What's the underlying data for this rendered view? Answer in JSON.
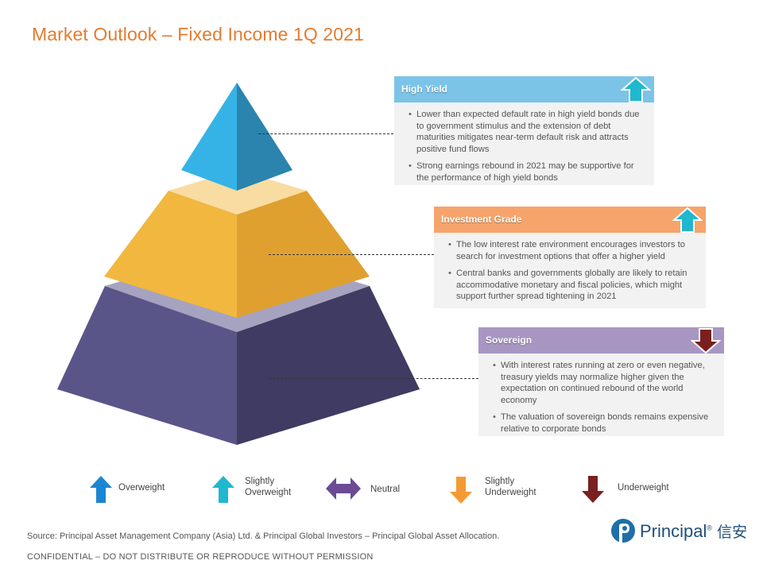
{
  "title": "Market Outlook – Fixed Income 1Q 2021",
  "panels": [
    {
      "heading": "High Yield",
      "signal": "slightly-overweight",
      "head_color": "#7bc4e8",
      "bullets": [
        "Lower than expected default rate in high yield bonds due to government stimulus and the extension of debt maturities mitigates near-term default risk and attracts positive fund flows",
        "Strong earnings rebound in 2021 may be supportive for the performance of high yield bonds"
      ]
    },
    {
      "heading": "Investment Grade",
      "signal": "slightly-overweight",
      "head_color": "#f6a46b",
      "bullets": [
        "The low interest rate environment encourages investors to search for investment options that offer a higher yield",
        "Central banks and governments globally are likely to retain accommodative monetary and fiscal policies, which might support further spread tightening in 2021"
      ]
    },
    {
      "heading": "Sovereign",
      "signal": "underweight",
      "head_color": "#a896c2",
      "bullets": [
        "With interest rates running at zero or even negative, treasury yields may normalize higher given the expectation on continued rebound of the world economy",
        "The valuation of sovereign bonds remains expensive relative to corporate bonds"
      ]
    }
  ],
  "legend": [
    {
      "label": "Overweight",
      "icon": "arrow-up-icon",
      "color": "#1b86d1"
    },
    {
      "label": "Slightly\nOverweight",
      "icon": "arrow-up-icon",
      "color": "#1fb8cf"
    },
    {
      "label": "Neutral",
      "icon": "arrow-left-right-icon",
      "color": "#6a4b94"
    },
    {
      "label": "Slightly\nUnderweight",
      "icon": "arrow-down-icon",
      "color": "#f59a33"
    },
    {
      "label": "Underweight",
      "icon": "arrow-down-icon",
      "color": "#7a1f1f"
    }
  ],
  "footer": {
    "source": "Source: Principal Asset Management Company (Asia) Ltd. & Principal Global Investors – Principal Global Asset Allocation.",
    "confidential": "CONFIDENTIAL – DO NOT DISTRIBUTE OR REPRODUCE WITHOUT PERMISSION"
  },
  "logo": {
    "name": "Principal",
    "chinese": "信安",
    "color": "#1f4f7a"
  },
  "colors": {
    "title": "#e57b2e",
    "pyramid_top": "#2fa6d8",
    "pyramid_mid": "#f0b43c",
    "pyramid_base": "#4b4775"
  }
}
